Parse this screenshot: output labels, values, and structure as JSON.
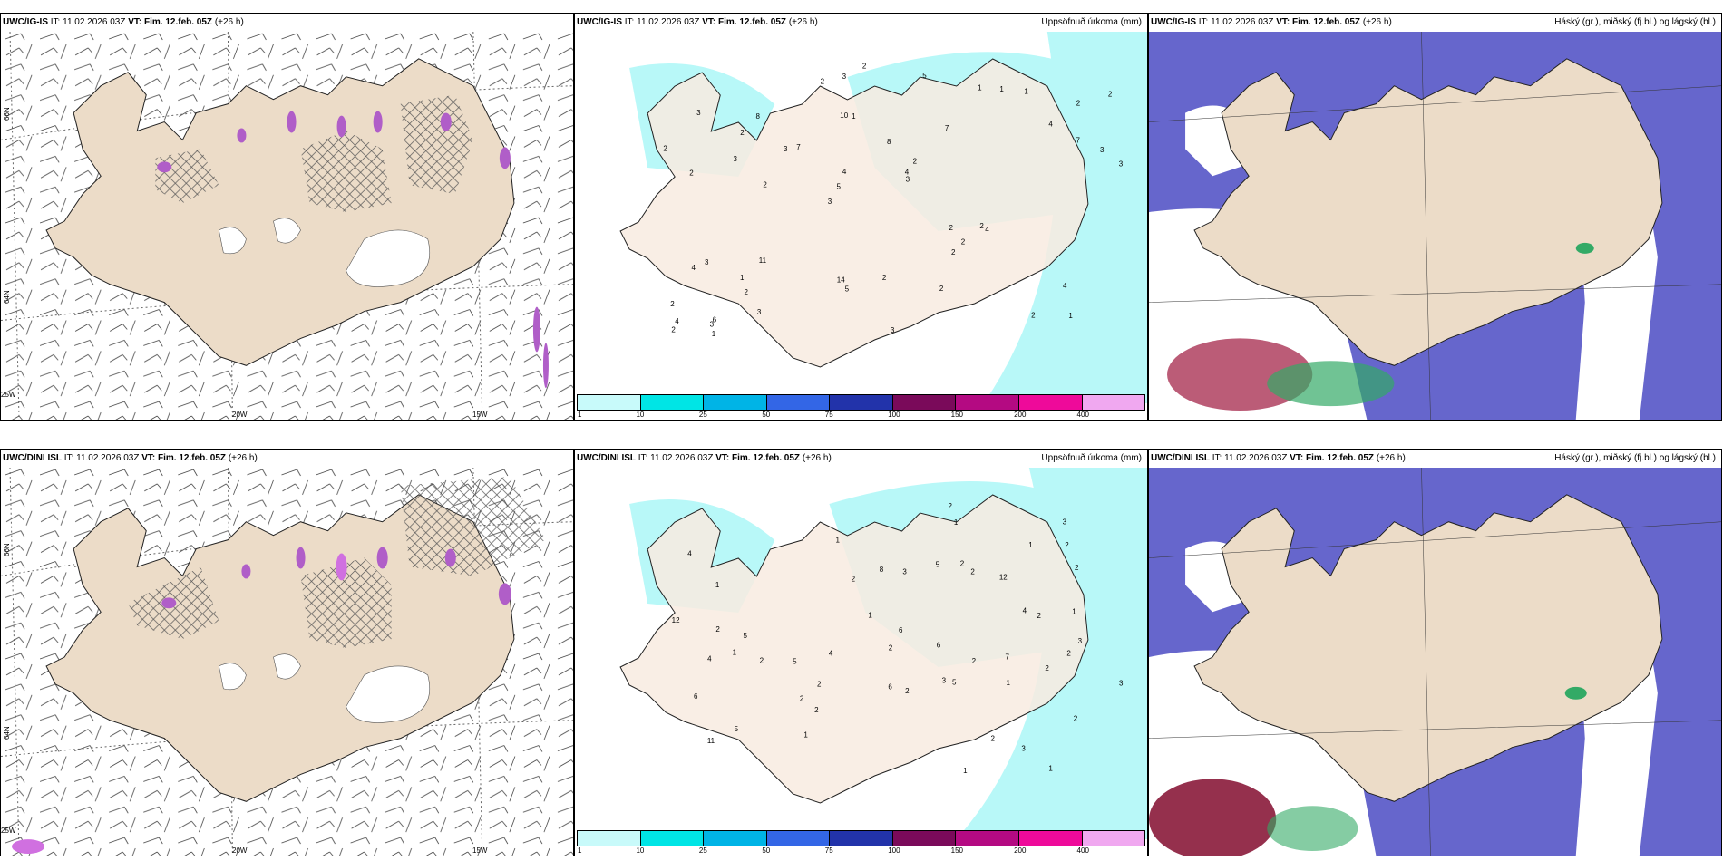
{
  "rows": [
    {
      "model": "UWC/IG-IS",
      "it_label": "IT:",
      "it_value": "11.02.2026 03Z",
      "vt_label": "VT:",
      "vt_value": "Fim. 12.feb. 05Z",
      "lead": "(+26 h)"
    },
    {
      "model": "UWC/DINI ISL",
      "it_label": "IT:",
      "it_value": "11.02.2026 03Z",
      "vt_label": "VT:",
      "vt_value": "Fim. 12.feb. 05Z",
      "lead": "(+26 h)"
    }
  ],
  "precip_title": "Uppsöfnuð úrkoma (mm)",
  "cloud_title": "Háský (gr.), miðský (fj.bl.) og lágský (bl.)",
  "lat_labels": [
    "66N",
    "64N"
  ],
  "lon_labels": [
    "25W",
    "20W",
    "15W"
  ],
  "colorbar": {
    "ticks": [
      "1",
      "10",
      "25",
      "50",
      "75",
      "100",
      "150",
      "200",
      "400"
    ],
    "colors": [
      "#c8fafa",
      "#00e5e5",
      "#00b4e6",
      "#3366e6",
      "#2233aa",
      "#7a0a5a",
      "#b40a82",
      "#ee0a9a",
      "#f0a8f0"
    ]
  },
  "colors": {
    "land": "#ecdcc8",
    "precip_light": "#b8f8f8",
    "cloud_high": "#6666cc",
    "cloud_low": "#ffffff",
    "icecap": "#ffffff"
  },
  "precip_top": [
    "1",
    "2",
    "2",
    "3",
    "7",
    "6",
    "10",
    "8",
    "3",
    "7",
    "2",
    "2",
    "1",
    "2",
    "4",
    "3",
    "3",
    "3",
    "2",
    "7",
    "5",
    "14",
    "4",
    "8",
    "1",
    "11",
    "2",
    "4",
    "2",
    "3",
    "3",
    "3",
    "2",
    "3",
    "3",
    "4",
    "4",
    "5",
    "3",
    "4",
    "4",
    "2",
    "2",
    "2",
    "1",
    "1",
    "2",
    "2",
    "1",
    "2",
    "2",
    "2",
    "2",
    "1",
    "3",
    "5",
    "2"
  ],
  "precip_bottom": [
    "1",
    "1",
    "3",
    "4",
    "2",
    "1",
    "5",
    "5",
    "12",
    "8",
    "2",
    "3",
    "2",
    "1",
    "6",
    "6",
    "7",
    "6",
    "12",
    "11",
    "3",
    "3",
    "4",
    "3",
    "3",
    "2",
    "2",
    "2",
    "1",
    "2",
    "5",
    "4",
    "2",
    "2",
    "2",
    "2",
    "2",
    "2",
    "1",
    "1",
    "2",
    "2",
    "1",
    "2",
    "4",
    "5",
    "2",
    "1",
    "5",
    "6",
    "2",
    "1",
    "1",
    "2"
  ]
}
